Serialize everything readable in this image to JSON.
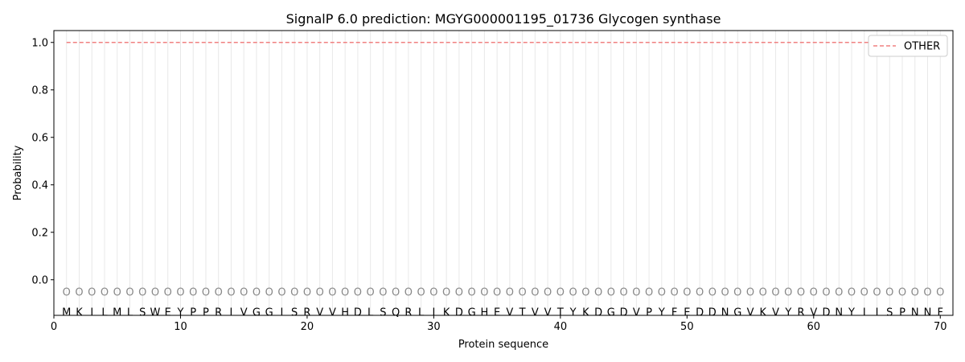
{
  "chart_data": {
    "type": "line",
    "title": "SignalP 6.0 prediction: MGYG000001195_01736 Glycogen synthase",
    "xlabel": "Protein sequence",
    "ylabel": "Probability",
    "xlim": [
      0,
      71
    ],
    "ylim": [
      -0.15,
      1.05
    ],
    "xticks": [
      0,
      10,
      20,
      30,
      40,
      50,
      60,
      70
    ],
    "yticks": [
      0.0,
      0.2,
      0.4,
      0.6,
      0.8,
      1.0
    ],
    "grid": false,
    "legend_position": "top-right",
    "sequence": [
      "M",
      "K",
      "I",
      "L",
      "M",
      "L",
      "S",
      "W",
      "E",
      "Y",
      "P",
      "P",
      "R",
      "I",
      "V",
      "G",
      "G",
      "I",
      "S",
      "R",
      "V",
      "V",
      "H",
      "D",
      "L",
      "S",
      "Q",
      "R",
      "L",
      "I",
      "K",
      "D",
      "G",
      "H",
      "E",
      "V",
      "T",
      "V",
      "V",
      "T",
      "Y",
      "K",
      "D",
      "G",
      "D",
      "V",
      "P",
      "Y",
      "F",
      "E",
      "D",
      "D",
      "N",
      "G",
      "V",
      "K",
      "V",
      "Y",
      "R",
      "V",
      "D",
      "N",
      "Y",
      "I",
      "I",
      "S",
      "P",
      "N",
      "N",
      "F"
    ],
    "predicted_labels": "OOOOOOOOOOOOOOOOOOOOOOOOOOOOOOOOOOOOOOOOOOOOOOOOOOOOOOOOOOOOOOOOOOOOOO",
    "series": [
      {
        "name": "OTHER",
        "color": "#f08080",
        "style": "dashed",
        "x_start": 1,
        "x_end": 70,
        "value": 1.0
      }
    ]
  }
}
